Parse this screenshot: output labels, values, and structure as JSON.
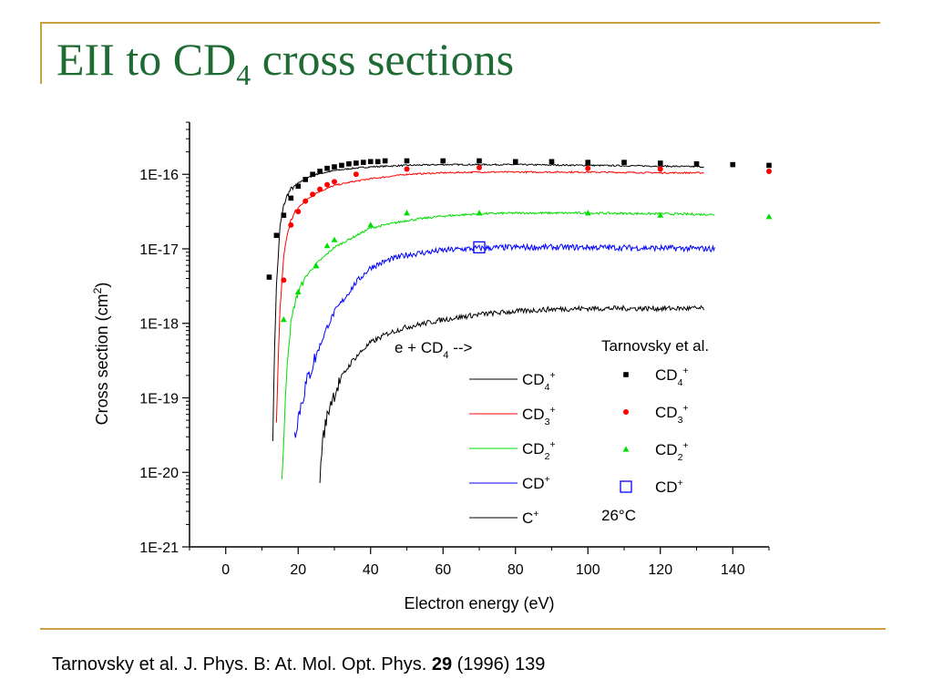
{
  "slide": {
    "title_main": "EII to CD",
    "title_sub": "4",
    "title_rest": " cross sections",
    "citation_pre": "Tarnovsky et al. J. Phys. B: At. Mol. Opt. Phys. ",
    "citation_vol": "29",
    "citation_post": " (1996) 139",
    "accent_color": "#c8a23c",
    "title_color": "#1f6b34"
  },
  "chart_data": {
    "type": "scatter",
    "xlabel": "Electron energy (eV)",
    "ylabel": "Cross section (cm2)",
    "ylabel_base": "Cross section (cm",
    "ylabel_sup": "2",
    "ylabel_close": ")",
    "xlim": [
      -10,
      150
    ],
    "ylim_log10": [
      -21,
      -15.3
    ],
    "y_scale": "log",
    "x_ticks": [
      0,
      20,
      40,
      60,
      80,
      100,
      120,
      140
    ],
    "x_tick_labels": [
      "0",
      "20",
      "40",
      "60",
      "80",
      "100",
      "120",
      "140"
    ],
    "y_ticks_log10": [
      -21,
      -20,
      -19,
      -18,
      -17,
      -16
    ],
    "y_tick_labels": [
      "1E-21",
      "1E-20",
      "1E-19",
      "1E-18",
      "1E-17",
      "1E-16"
    ],
    "grid": false,
    "legend_lines": {
      "header": "e + CD",
      "header_sub": "4",
      "header_tail": " -->",
      "entries": [
        {
          "label": "CD",
          "sub": "4",
          "sup": "+",
          "color": "#000000"
        },
        {
          "label": "CD",
          "sub": "3",
          "sup": "+",
          "color": "#ff0000"
        },
        {
          "label": "CD",
          "sub": "2",
          "sup": "+",
          "color": "#00dd00"
        },
        {
          "label": "CD",
          "sub": "",
          "sup": "+",
          "color": "#0000ff"
        },
        {
          "label": "C",
          "sub": "",
          "sup": "+",
          "color": "#000000"
        }
      ]
    },
    "legend_points": {
      "header": "Tarnovsky et al.",
      "entries": [
        {
          "label": "CD",
          "sub": "4",
          "sup": "+",
          "marker": "square",
          "color": "#000000"
        },
        {
          "label": "CD",
          "sub": "3",
          "sup": "+",
          "marker": "circle",
          "color": "#ff0000"
        },
        {
          "label": "CD",
          "sub": "2",
          "sup": "+",
          "marker": "triangle",
          "color": "#00dd00"
        },
        {
          "label": "CD",
          "sub": "",
          "sup": "+",
          "marker": "open-square",
          "color": "#0000ff"
        }
      ],
      "note": "26°C"
    },
    "line_series": [
      {
        "name": "CD4+",
        "color": "#000000",
        "noise": 0.01,
        "x": [
          13,
          13.5,
          14,
          15,
          16,
          17,
          18,
          20,
          22,
          25,
          30,
          35,
          40,
          50,
          60,
          70,
          80,
          100,
          120,
          132
        ],
        "y": [
          -19.55,
          -18.3,
          -17.5,
          -16.7,
          -16.42,
          -16.28,
          -16.2,
          -16.12,
          -16.06,
          -16.0,
          -15.95,
          -15.92,
          -15.9,
          -15.88,
          -15.87,
          -15.87,
          -15.87,
          -15.88,
          -15.89,
          -15.9
        ]
      },
      {
        "name": "CD3+",
        "color": "#ff0000",
        "noise": 0.01,
        "x": [
          14,
          14.5,
          15,
          16,
          17,
          18,
          19,
          20,
          22,
          25,
          30,
          35,
          40,
          50,
          60,
          70,
          80,
          100,
          120,
          132
        ],
        "y": [
          -19.35,
          -18.5,
          -17.8,
          -17.1,
          -16.8,
          -16.62,
          -16.52,
          -16.45,
          -16.35,
          -16.25,
          -16.15,
          -16.1,
          -16.06,
          -16.0,
          -15.98,
          -15.97,
          -15.97,
          -15.97,
          -15.98,
          -15.98
        ]
      },
      {
        "name": "CD2+",
        "color": "#00dd00",
        "noise": 0.015,
        "x": [
          15.5,
          16,
          16.5,
          17,
          18,
          19,
          20,
          22,
          25,
          30,
          35,
          40,
          50,
          60,
          70,
          80,
          100,
          120,
          135
        ],
        "y": [
          -20.1,
          -19.6,
          -19.0,
          -18.5,
          -18.0,
          -17.75,
          -17.58,
          -17.38,
          -17.2,
          -16.98,
          -16.85,
          -16.72,
          -16.62,
          -16.56,
          -16.53,
          -16.52,
          -16.52,
          -16.53,
          -16.54
        ]
      },
      {
        "name": "CD+",
        "color": "#0000ff",
        "noise": 0.04,
        "x": [
          19,
          20,
          21,
          22,
          24,
          26,
          28,
          30,
          33,
          36,
          40,
          45,
          50,
          60,
          70,
          80,
          100,
          120,
          135
        ],
        "y": [
          -19.5,
          -19.25,
          -19.05,
          -18.85,
          -18.55,
          -18.3,
          -18.05,
          -17.85,
          -17.65,
          -17.45,
          -17.25,
          -17.15,
          -17.08,
          -17.02,
          -16.99,
          -16.98,
          -16.98,
          -16.99,
          -17.0
        ]
      },
      {
        "name": "C+",
        "color": "#000000",
        "noise": 0.035,
        "x": [
          26,
          26.5,
          27,
          28,
          29,
          30,
          32,
          35,
          38,
          40,
          45,
          50,
          60,
          70,
          80,
          90,
          100,
          110,
          120,
          132
        ],
        "y": [
          -20.1,
          -19.7,
          -19.5,
          -19.25,
          -19.05,
          -18.95,
          -18.72,
          -18.5,
          -18.35,
          -18.26,
          -18.13,
          -18.05,
          -17.95,
          -17.88,
          -17.84,
          -17.81,
          -17.8,
          -17.8,
          -17.8,
          -17.8
        ]
      }
    ],
    "point_series": [
      {
        "name": "CD4+",
        "marker": "square",
        "color": "#000000",
        "x": [
          12,
          14,
          16,
          18,
          20,
          22,
          24,
          26,
          28,
          30,
          32,
          34,
          36,
          38,
          40,
          42,
          44,
          50,
          60,
          70,
          80,
          90,
          100,
          110,
          120,
          130,
          140,
          150
        ],
        "y": [
          -17.38,
          -16.82,
          -16.55,
          -16.32,
          -16.16,
          -16.07,
          -16.0,
          -15.96,
          -15.92,
          -15.9,
          -15.88,
          -15.86,
          -15.85,
          -15.84,
          -15.83,
          -15.83,
          -15.82,
          -15.82,
          -15.82,
          -15.82,
          -15.83,
          -15.83,
          -15.84,
          -15.84,
          -15.85,
          -15.86,
          -15.87,
          -15.88
        ]
      },
      {
        "name": "CD3+",
        "marker": "circle",
        "color": "#ff0000",
        "x": [
          16,
          18,
          20,
          22,
          24,
          26,
          28,
          30,
          36,
          50,
          70,
          100,
          120,
          150
        ],
        "y": [
          -17.42,
          -16.68,
          -16.5,
          -16.36,
          -16.27,
          -16.2,
          -16.14,
          -16.1,
          -16.0,
          -15.93,
          -15.91,
          -15.92,
          -15.93,
          -15.96
        ]
      },
      {
        "name": "CD2+",
        "marker": "triangle",
        "color": "#00dd00",
        "x": [
          16,
          20,
          25,
          28,
          30,
          40,
          50,
          70,
          100,
          120,
          150
        ],
        "y": [
          -17.95,
          -17.58,
          -17.23,
          -16.96,
          -16.88,
          -16.68,
          -16.52,
          -16.52,
          -16.52,
          -16.55,
          -16.57
        ]
      },
      {
        "name": "CD+",
        "marker": "open-square",
        "color": "#0000ff",
        "x": [
          70
        ],
        "y": [
          -16.98
        ]
      }
    ]
  }
}
